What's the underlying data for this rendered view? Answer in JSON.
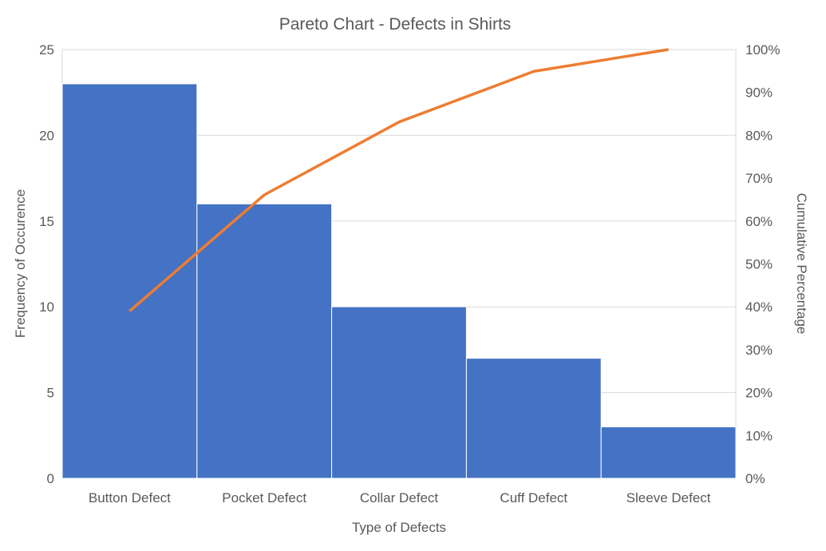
{
  "chart_data": {
    "type": "bar",
    "title": "Pareto Chart - Defects in Shirts",
    "xlabel": "Type of Defects",
    "ylabel": "Frequency of Occurence",
    "y2label": "Cumulative Percentage",
    "categories": [
      "Button Defect",
      "Pocket Defect",
      "Collar Defect",
      "Cuff Defect",
      "Sleeve Defect"
    ],
    "series": [
      {
        "name": "Frequency",
        "type": "bar",
        "axis": "left",
        "color": "#4472C4",
        "values": [
          23,
          16,
          10,
          7,
          3
        ]
      },
      {
        "name": "Cumulative Percentage",
        "type": "line",
        "axis": "right",
        "color": "#ED7D31",
        "values": [
          39.0,
          66.1,
          83.1,
          94.9,
          100.0
        ]
      }
    ],
    "ylim": [
      0,
      25
    ],
    "yticks": [
      0,
      5,
      10,
      15,
      20,
      25
    ],
    "y2lim": [
      0,
      100
    ],
    "y2ticks": [
      "0%",
      "10%",
      "20%",
      "30%",
      "40%",
      "50%",
      "60%",
      "70%",
      "80%",
      "90%",
      "100%"
    ],
    "grid": true,
    "legend": "none"
  }
}
